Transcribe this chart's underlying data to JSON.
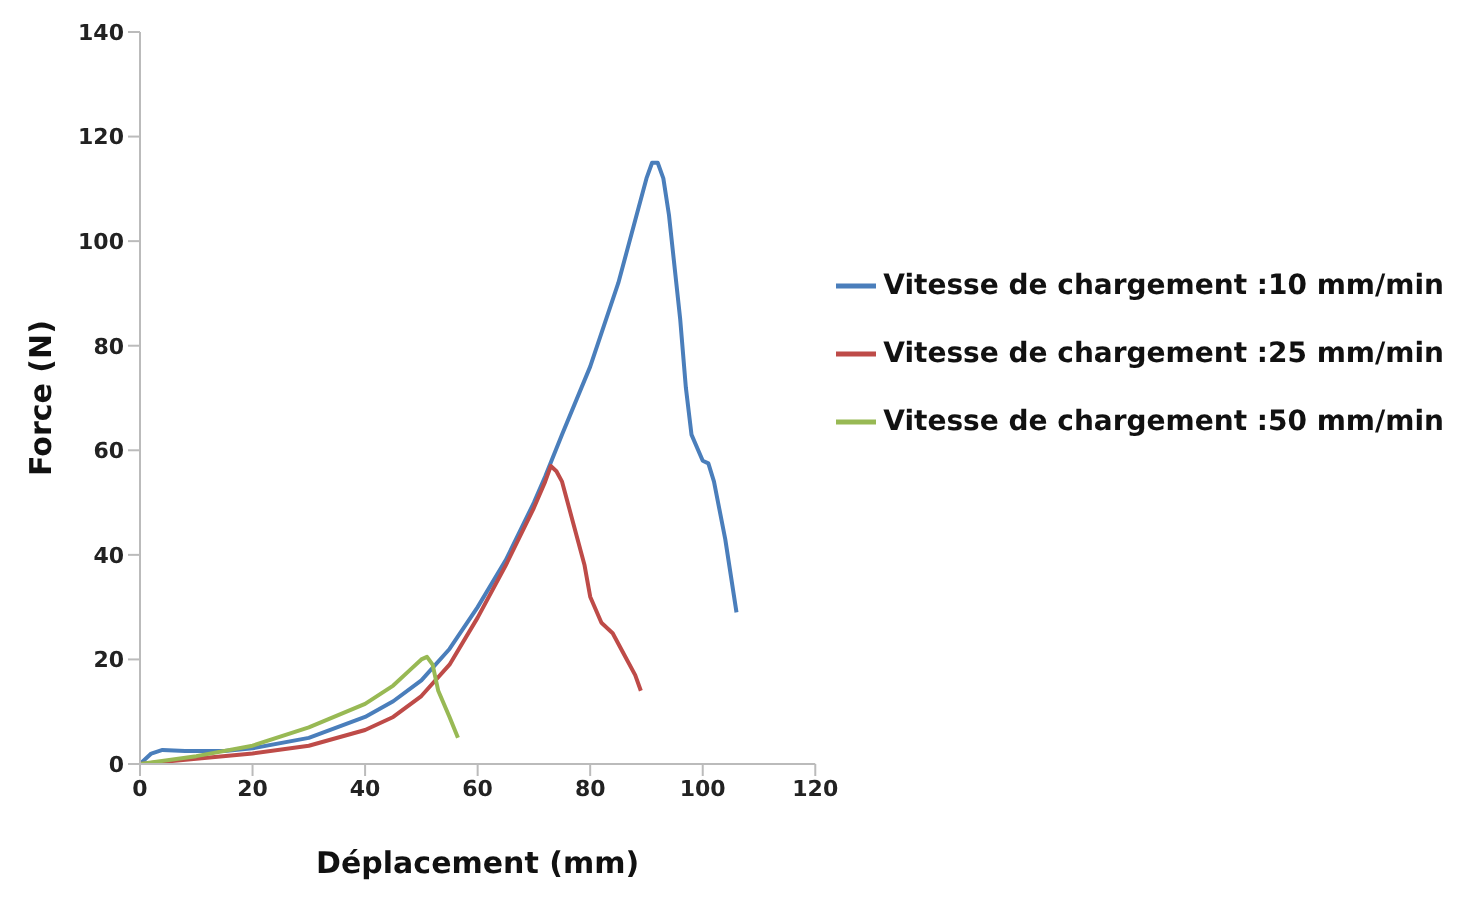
{
  "chart_data": {
    "type": "line",
    "xlabel": "Déplacement (mm)",
    "ylabel": "Force (N)",
    "xlim": [
      0,
      120
    ],
    "xticks": [
      0,
      20,
      40,
      60,
      80,
      100,
      120
    ],
    "ylim": [
      0,
      140
    ],
    "yticks": [
      0,
      20,
      40,
      60,
      80,
      100,
      120,
      140
    ],
    "grid": false,
    "legend": "right",
    "marker": "none",
    "line_style": "solid",
    "series": [
      {
        "name": "Vitesse de chargement :10 mm/min",
        "color": "#4a7ebb",
        "x": [
          0,
          2,
          4,
          8,
          15,
          20,
          30,
          40,
          45,
          50,
          55,
          60,
          65,
          70,
          72,
          75,
          80,
          85,
          88,
          90,
          91,
          92,
          93,
          94,
          96,
          97,
          98,
          100,
          101,
          102,
          104,
          106
        ],
        "values": [
          0,
          2,
          2.7,
          2.5,
          2.5,
          3,
          5,
          9,
          12,
          16,
          22,
          30,
          39,
          50,
          55,
          63,
          76,
          92,
          104,
          112,
          115,
          115,
          112,
          105,
          85,
          72,
          63,
          58,
          57.5,
          54,
          43,
          29
        ]
      },
      {
        "name": "Vitesse de chargement :25 mm/min",
        "color": "#be4b48",
        "x": [
          0,
          10,
          20,
          30,
          40,
          45,
          50,
          55,
          60,
          65,
          70,
          72,
          73,
          74,
          75,
          77,
          79,
          80,
          82,
          84,
          86,
          88,
          89
        ],
        "values": [
          0,
          1,
          2,
          3.5,
          6.5,
          9,
          13,
          19,
          28,
          38,
          49,
          54,
          57,
          56,
          54,
          46,
          38,
          32,
          27,
          25,
          21,
          17,
          14
        ]
      },
      {
        "name": "Vitesse de chargement :50 mm/min",
        "color": "#98b954",
        "x": [
          0,
          10,
          20,
          30,
          40,
          45,
          48,
          50,
          51,
          52,
          53,
          55,
          56.5
        ],
        "values": [
          0,
          1.5,
          3.5,
          7,
          11.5,
          15,
          18,
          20,
          20.5,
          19,
          14,
          9,
          5
        ]
      }
    ]
  }
}
